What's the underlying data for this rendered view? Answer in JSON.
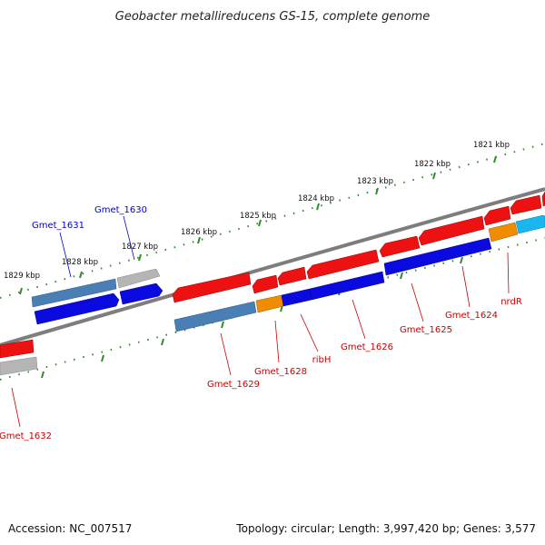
{
  "title": "Geobacter metallireducens GS-15, complete genome",
  "footer": {
    "accession": "Accession: NC_007517",
    "summary": "Topology: circular; Length: 3,997,420 bp; Genes: 3,577"
  },
  "ticks": [
    "1821 kbp",
    "1822 kbp",
    "1823 kbp",
    "1824 kbp",
    "1825 kbp",
    "1826 kbp",
    "1827 kbp",
    "1828 kbp",
    "1829 kbp"
  ],
  "gene_labels": [
    {
      "text": "Gmet_1631",
      "color": "#0000cc"
    },
    {
      "text": "Gmet_1630",
      "color": "#0000cc"
    },
    {
      "text": "Gmet_1632",
      "color": "#cc0000"
    },
    {
      "text": "Gmet_1629",
      "color": "#cc0000"
    },
    {
      "text": "Gmet_1628",
      "color": "#cc0000"
    },
    {
      "text": "ribH",
      "color": "#cc0000"
    },
    {
      "text": "Gmet_1626",
      "color": "#cc0000"
    },
    {
      "text": "Gmet_1625",
      "color": "#cc0000"
    },
    {
      "text": "Gmet_1624",
      "color": "#cc0000"
    },
    {
      "text": "nrdR",
      "color": "#cc0000"
    }
  ],
  "colors": {
    "red": "#ee1111",
    "blue": "#0a0ae0",
    "steelblue": "#4a7fb5",
    "gray": "#b5b5b5",
    "orange": "#f08c00",
    "cyan": "#19b6f0",
    "backbone": "#808080",
    "dots": "#2e8b2e"
  }
}
